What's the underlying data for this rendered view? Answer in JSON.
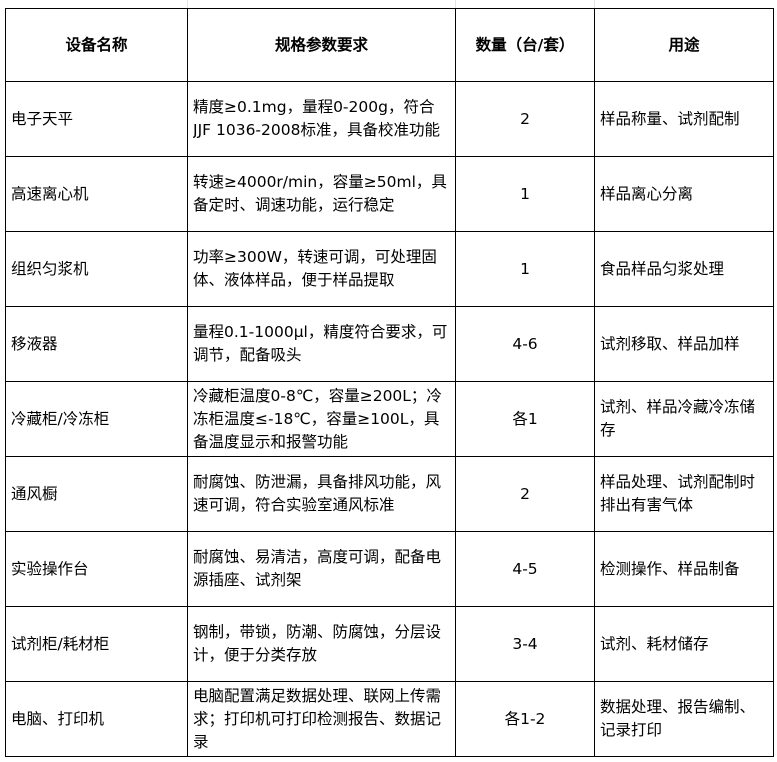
{
  "headers": [
    "设备名称",
    "规格参数要求",
    "数量（台/套）",
    "用途"
  ],
  "rows": [
    {
      "name": "电子天平",
      "spec": "精度≥0.1mg，量程0-200g，符合JJF 1036-2008标准，具备校准功能",
      "qty": "2",
      "use": "样品称量、试剂配制"
    },
    {
      "name": "高速离心机",
      "spec": "转速≥4000r/min，容量≥50ml，具备定时、调速功能，运行稳定",
      "qty": "1",
      "use": "样品离心分离"
    },
    {
      "name": "组织匀浆机",
      "spec": "功率≥300W，转速可调，可处理固体、液体样品，便于样品提取",
      "qty": "1",
      "use": "食品样品匀浆处理"
    },
    {
      "name": "移液器",
      "spec": "量程0.1-1000μl，精度符合要求，可调节，配备吸头",
      "qty": "4-6",
      "use": "试剂移取、样品加样"
    },
    {
      "name": "冷藏柜/冷冻柜",
      "spec": "冷藏柜温度0-8℃，容量≥200L；冷冻柜温度≤-18℃，容量≥100L，具备温度显示和报警功能",
      "qty": "各1",
      "use": "试剂、样品冷藏冷冻储存"
    },
    {
      "name": "通风橱",
      "spec": "耐腐蚀、防泄漏，具备排风功能，风速可调，符合实验室通风标准",
      "qty": "2",
      "use": "样品处理、试剂配制时排出有害气体"
    },
    {
      "name": "实验操作台",
      "spec": "耐腐蚀、易清洁，高度可调，配备电源插座、试剂架",
      "qty": "4-5",
      "use": "检测操作、样品制备"
    },
    {
      "name": "试剂柜/耗材柜",
      "spec": "钢制，带锁，防潮、防腐蚀，分层设计，便于分类存放",
      "qty": "3-4",
      "use": "试剂、耗材储存"
    },
    {
      "name": "电脑、打印机",
      "spec": "电脑配置满足数据处理、联网上传需求；打印机可打印检测报告、数据记录",
      "qty": "各1-2",
      "use": "数据处理、报告编制、记录打印"
    }
  ]
}
